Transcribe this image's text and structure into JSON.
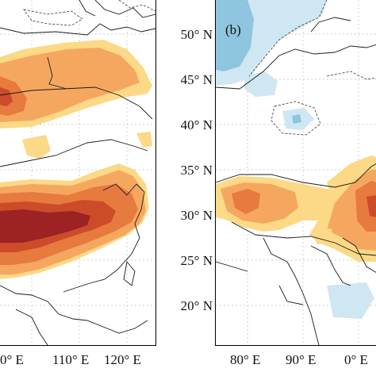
{
  "panel_a": {
    "lon_labels": [
      "0° E",
      "110° E",
      "120° E"
    ],
    "colors": {
      "light": "#fbd986",
      "orange": "#f5a760",
      "mid": "#e77a3e",
      "dark": "#cc4b29",
      "darkest": "#9c2224"
    }
  },
  "panel_b": {
    "tag": "(b)",
    "lon_labels": [
      "80° E",
      "90° E",
      "0° E"
    ],
    "colors": {
      "pale_blue": "#cfe7f2",
      "light_blue": "#8ec5df",
      "light": "#fbd986",
      "orange": "#f5a760",
      "mid": "#e77a3e",
      "dark": "#cc4b29"
    }
  },
  "lat_labels": [
    "50° N",
    "45° N",
    "40° N",
    "35° N",
    "30° N",
    "25° N",
    "20° N"
  ]
}
